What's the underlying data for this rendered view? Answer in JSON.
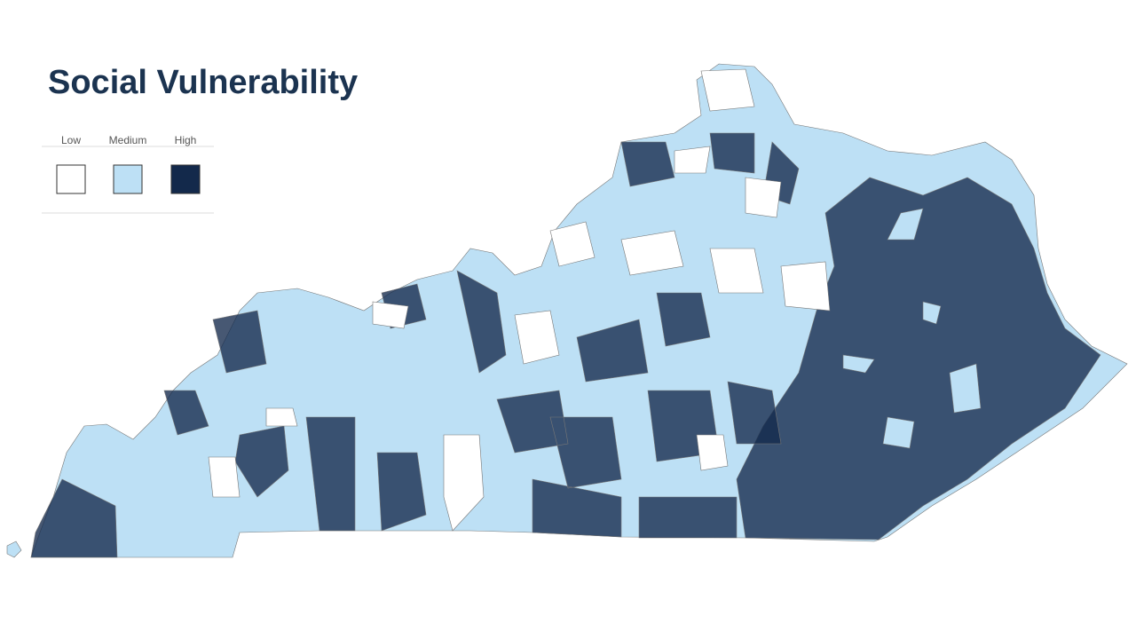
{
  "title": "Social Vulnerability",
  "legend": {
    "items": [
      {
        "label": "Low",
        "color": "#ffffff"
      },
      {
        "label": "Medium",
        "color": "#bde0f5"
      },
      {
        "label": "High",
        "color": "#13294b"
      }
    ]
  }
}
